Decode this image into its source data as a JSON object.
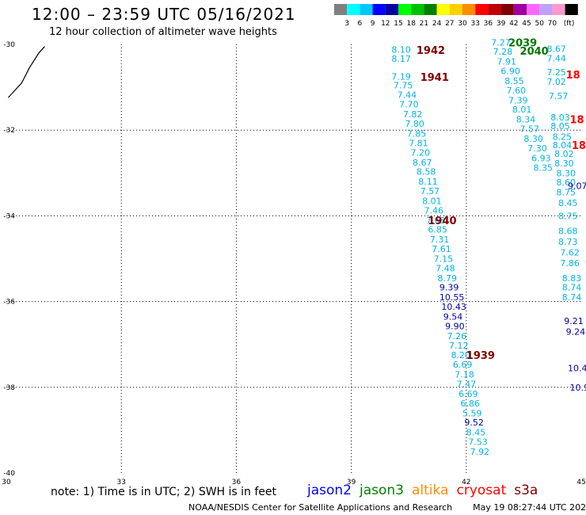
{
  "header": {
    "title": "12:00 – 23:59 UTC 05/16/2021",
    "subtitle": "12 hour collection of altimeter wave heights"
  },
  "legend": {
    "unit": "(ft)",
    "bins": [
      {
        "label": "",
        "color": "#7f7f7f"
      },
      {
        "label": "3",
        "color": "#00ffff"
      },
      {
        "label": "6",
        "color": "#00c8ff"
      },
      {
        "label": "9",
        "color": "#0000ff"
      },
      {
        "label": "12",
        "color": "#00009f"
      },
      {
        "label": "15",
        "color": "#00ff00"
      },
      {
        "label": "18",
        "color": "#00c000"
      },
      {
        "label": "21",
        "color": "#008000"
      },
      {
        "label": "24",
        "color": "#ffff00"
      },
      {
        "label": "27",
        "color": "#ffd000"
      },
      {
        "label": "30",
        "color": "#ff8c00"
      },
      {
        "label": "33",
        "color": "#ff0000"
      },
      {
        "label": "36",
        "color": "#c00000"
      },
      {
        "label": "39",
        "color": "#800000"
      },
      {
        "label": "42",
        "color": "#9f009f"
      },
      {
        "label": "45",
        "color": "#ff66ff"
      },
      {
        "label": "50",
        "color": "#c0a0ff"
      },
      {
        "label": "70",
        "color": "#ff99cc"
      },
      {
        "label": "",
        "color": "#000000"
      }
    ]
  },
  "chart_data": {
    "type": "scatter",
    "x_ticks": [
      "30",
      "33",
      "36",
      "39",
      "42",
      "45"
    ],
    "y_ticks": [
      "-30",
      "-32",
      "-34",
      "-36",
      "-38",
      "-40"
    ],
    "xlim": [
      30,
      45
    ],
    "ylim": [
      -40,
      -30
    ],
    "grid": true,
    "colors": {
      "light": "#00b4e6",
      "dark": "#0000aa",
      "time_maroon": "#800000",
      "time_green": "#007800",
      "time_red": "#ff0000"
    },
    "coastline": [
      [
        30.05,
        -31.24
      ],
      [
        30.4,
        -30.9
      ],
      [
        30.6,
        -30.55
      ],
      [
        30.85,
        -30.2
      ],
      [
        31.0,
        -30.05
      ]
    ],
    "track_left": [
      {
        "x": 40.05,
        "y": -30.12,
        "label": "8.10",
        "shade": "light"
      },
      {
        "x": 40.05,
        "y": -30.33,
        "label": "8.17",
        "shade": "light"
      },
      {
        "x": 40.05,
        "y": -30.75,
        "label": "7.19",
        "shade": "light"
      },
      {
        "x": 40.1,
        "y": -30.95,
        "label": "7.75",
        "shade": "light"
      },
      {
        "x": 40.2,
        "y": -31.17,
        "label": "7.44",
        "shade": "light"
      },
      {
        "x": 40.25,
        "y": -31.4,
        "label": "7.70",
        "shade": "light"
      },
      {
        "x": 40.35,
        "y": -31.63,
        "label": "7.82",
        "shade": "light"
      },
      {
        "x": 40.4,
        "y": -31.85,
        "label": "7.80",
        "shade": "light"
      },
      {
        "x": 40.45,
        "y": -32.08,
        "label": "7.85",
        "shade": "light"
      },
      {
        "x": 40.5,
        "y": -32.3,
        "label": "7.81",
        "shade": "light"
      },
      {
        "x": 40.55,
        "y": -32.52,
        "label": "7.20",
        "shade": "light"
      },
      {
        "x": 40.6,
        "y": -32.75,
        "label": "8.67",
        "shade": "light"
      },
      {
        "x": 40.7,
        "y": -32.97,
        "label": "8.58",
        "shade": "light"
      },
      {
        "x": 40.75,
        "y": -33.2,
        "label": "8.11",
        "shade": "light"
      },
      {
        "x": 40.8,
        "y": -33.42,
        "label": "7.57",
        "shade": "light"
      },
      {
        "x": 40.85,
        "y": -33.65,
        "label": "8.01",
        "shade": "light"
      },
      {
        "x": 40.9,
        "y": -33.87,
        "label": "7.46",
        "shade": "light"
      },
      {
        "x": 40.95,
        "y": -34.1,
        "label": "7.63",
        "shade": "light"
      },
      {
        "x": 41.0,
        "y": -34.32,
        "label": "6.85",
        "shade": "light"
      },
      {
        "x": 41.05,
        "y": -34.55,
        "label": "7.31",
        "shade": "light"
      },
      {
        "x": 41.1,
        "y": -34.77,
        "label": "7.61",
        "shade": "light"
      },
      {
        "x": 41.15,
        "y": -35.0,
        "label": "7.15",
        "shade": "light"
      },
      {
        "x": 41.2,
        "y": -35.22,
        "label": "7.48",
        "shade": "light"
      },
      {
        "x": 41.25,
        "y": -35.45,
        "label": "8.79",
        "shade": "light"
      },
      {
        "x": 41.3,
        "y": -35.67,
        "label": "9.39",
        "shade": "dark"
      },
      {
        "x": 41.3,
        "y": -35.9,
        "label": "10.55",
        "shade": "dark"
      },
      {
        "x": 41.35,
        "y": -36.12,
        "label": "10.43",
        "shade": "dark"
      },
      {
        "x": 41.4,
        "y": -36.35,
        "label": "9.54",
        "shade": "dark"
      },
      {
        "x": 41.45,
        "y": -36.57,
        "label": "9.90",
        "shade": "dark"
      },
      {
        "x": 41.5,
        "y": -36.8,
        "label": "7.26",
        "shade": "light"
      },
      {
        "x": 41.55,
        "y": -37.02,
        "label": "7.12",
        "shade": "light"
      },
      {
        "x": 41.6,
        "y": -37.25,
        "label": "8.20",
        "shade": "light"
      },
      {
        "x": 41.65,
        "y": -37.47,
        "label": "6.69",
        "shade": "light"
      },
      {
        "x": 41.7,
        "y": -37.7,
        "label": "7.18",
        "shade": "light"
      },
      {
        "x": 41.75,
        "y": -37.92,
        "label": "7.47",
        "shade": "light"
      },
      {
        "x": 41.8,
        "y": -38.15,
        "label": "6.69",
        "shade": "light"
      },
      {
        "x": 41.85,
        "y": -38.37,
        "label": "6.86",
        "shade": "light"
      },
      {
        "x": 41.9,
        "y": -38.6,
        "label": "5.59",
        "shade": "light"
      },
      {
        "x": 41.95,
        "y": -38.82,
        "label": "9.52",
        "shade": "dark"
      },
      {
        "x": 42.0,
        "y": -39.05,
        "label": "8.45",
        "shade": "light"
      },
      {
        "x": 42.05,
        "y": -39.27,
        "label": "7.53",
        "shade": "light"
      },
      {
        "x": 42.1,
        "y": -39.5,
        "label": "7.92",
        "shade": "light"
      }
    ],
    "track_right": [
      {
        "x": 42.65,
        "y": -29.95,
        "label": "7.27",
        "shade": "light"
      },
      {
        "x": 42.7,
        "y": -30.17,
        "label": "7.28",
        "shade": "light"
      },
      {
        "x": 42.8,
        "y": -30.4,
        "label": "7.91",
        "shade": "light"
      },
      {
        "x": 42.9,
        "y": -30.62,
        "label": "6.90",
        "shade": "light"
      },
      {
        "x": 43.0,
        "y": -30.85,
        "label": "8.55",
        "shade": "light"
      },
      {
        "x": 43.05,
        "y": -31.07,
        "label": "7.60",
        "shade": "light"
      },
      {
        "x": 43.1,
        "y": -31.3,
        "label": "7.39",
        "shade": "light"
      },
      {
        "x": 43.2,
        "y": -31.52,
        "label": "8.01",
        "shade": "light"
      },
      {
        "x": 43.3,
        "y": -31.75,
        "label": "8.34",
        "shade": "light"
      },
      {
        "x": 43.4,
        "y": -31.97,
        "label": "7.57",
        "shade": "light"
      },
      {
        "x": 43.5,
        "y": -32.2,
        "label": "8.30",
        "shade": "light"
      },
      {
        "x": 43.6,
        "y": -32.42,
        "label": "7.30",
        "shade": "light"
      },
      {
        "x": 43.7,
        "y": -32.65,
        "label": "6.93",
        "shade": "light"
      },
      {
        "x": 43.75,
        "y": -32.87,
        "label": "8.35",
        "shade": "light"
      },
      {
        "x": 44.1,
        "y": -30.1,
        "label": "8.67",
        "shade": "light"
      },
      {
        "x": 44.1,
        "y": -30.32,
        "label": "7.44",
        "shade": "light"
      },
      {
        "x": 44.1,
        "y": -30.65,
        "label": "7.25",
        "shade": "light"
      },
      {
        "x": 44.1,
        "y": -30.87,
        "label": "7.02",
        "shade": "light"
      },
      {
        "x": 44.15,
        "y": -31.2,
        "label": "7.57",
        "shade": "light"
      },
      {
        "x": 44.2,
        "y": -31.7,
        "label": "8.03",
        "shade": "light"
      },
      {
        "x": 44.2,
        "y": -31.9,
        "label": "8.05",
        "shade": "light"
      },
      {
        "x": 44.25,
        "y": -32.15,
        "label": "8.25",
        "shade": "light"
      },
      {
        "x": 44.25,
        "y": -32.35,
        "label": "8.04",
        "shade": "light"
      },
      {
        "x": 44.3,
        "y": -32.55,
        "label": "8.02",
        "shade": "light"
      },
      {
        "x": 44.3,
        "y": -32.77,
        "label": "8.30",
        "shade": "light"
      },
      {
        "x": 44.35,
        "y": -33.0,
        "label": "8.30",
        "shade": "light"
      },
      {
        "x": 44.35,
        "y": -33.22,
        "label": "8.60",
        "shade": "light"
      },
      {
        "x": 44.35,
        "y": -33.45,
        "label": "8.75",
        "shade": "light"
      },
      {
        "x": 44.65,
        "y": -33.3,
        "label": "9.07",
        "shade": "dark"
      },
      {
        "x": 44.4,
        "y": -33.7,
        "label": "8.45",
        "shade": "light"
      },
      {
        "x": 44.4,
        "y": -34.0,
        "label": "8.75",
        "shade": "light"
      },
      {
        "x": 44.4,
        "y": -34.35,
        "label": "8.68",
        "shade": "light"
      },
      {
        "x": 44.4,
        "y": -34.6,
        "label": "8.73",
        "shade": "light"
      },
      {
        "x": 44.45,
        "y": -34.85,
        "label": "7.62",
        "shade": "light"
      },
      {
        "x": 44.45,
        "y": -35.1,
        "label": "7.86",
        "shade": "light"
      },
      {
        "x": 44.5,
        "y": -35.45,
        "label": "8.83",
        "shade": "light"
      },
      {
        "x": 44.5,
        "y": -35.67,
        "label": "8.74",
        "shade": "light"
      },
      {
        "x": 44.5,
        "y": -35.9,
        "label": "8.74",
        "shade": "light"
      },
      {
        "x": 44.55,
        "y": -36.45,
        "label": "9.21",
        "shade": "dark"
      },
      {
        "x": 44.6,
        "y": -36.7,
        "label": "9.24",
        "shade": "dark"
      },
      {
        "x": 44.65,
        "y": -37.55,
        "label": "10.4",
        "shade": "dark"
      },
      {
        "x": 44.7,
        "y": -38.0,
        "label": "10.9",
        "shade": "dark"
      }
    ],
    "time_labels": [
      {
        "x": 40.7,
        "y": -30.13,
        "label": "1942",
        "color": "time_maroon"
      },
      {
        "x": 40.8,
        "y": -30.76,
        "label": "1941",
        "color": "time_maroon"
      },
      {
        "x": 41.0,
        "y": -34.1,
        "label": "1940",
        "color": "time_maroon"
      },
      {
        "x": 42.0,
        "y": -37.25,
        "label": "1939",
        "color": "time_maroon"
      },
      {
        "x": 43.1,
        "y": -29.95,
        "label": "2039",
        "color": "time_green"
      },
      {
        "x": 43.4,
        "y": -30.15,
        "label": "2040",
        "color": "time_green"
      },
      {
        "x": 44.6,
        "y": -30.7,
        "label": "18",
        "color": "time_red"
      },
      {
        "x": 44.7,
        "y": -31.75,
        "label": "18",
        "color": "time_red"
      },
      {
        "x": 44.75,
        "y": -32.35,
        "label": "18",
        "color": "time_red"
      }
    ]
  },
  "footer": {
    "note": "note: 1) Time is in UTC; 2) SWH is in feet",
    "satellites": [
      {
        "name": "jason2",
        "color": "#0000ff"
      },
      {
        "name": "jason3",
        "color": "#008000"
      },
      {
        "name": "altika",
        "color": "#ff8c00"
      },
      {
        "name": "cryosat",
        "color": "#ff0000"
      },
      {
        "name": "s3a",
        "color": "#800000"
      }
    ],
    "credit": "NOAA/NESDIS Center for Satellite Applications and Research",
    "timestamp": "May 19 08:27:44 UTC 2021"
  }
}
